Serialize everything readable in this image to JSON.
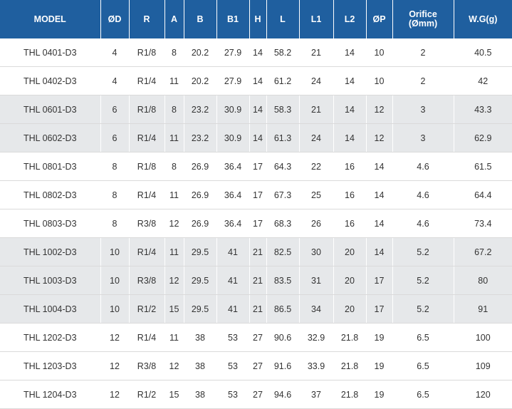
{
  "table": {
    "headers": [
      "MODEL",
      "ØD",
      "R",
      "A",
      "B",
      "B1",
      "H",
      "L",
      "L1",
      "L2",
      "ØP",
      "Orifice\n(Ømm)",
      "W.G(g)"
    ],
    "rows": [
      [
        "THL 0401-D3",
        "4",
        "R1/8",
        "8",
        "20.2",
        "27.9",
        "14",
        "58.2",
        "21",
        "14",
        "10",
        "2",
        "40.5"
      ],
      [
        "THL 0402-D3",
        "4",
        "R1/4",
        "11",
        "20.2",
        "27.9",
        "14",
        "61.2",
        "24",
        "14",
        "10",
        "2",
        "42"
      ],
      [
        "THL 0601-D3",
        "6",
        "R1/8",
        "8",
        "23.2",
        "30.9",
        "14",
        "58.3",
        "21",
        "14",
        "12",
        "3",
        "43.3"
      ],
      [
        "THL 0602-D3",
        "6",
        "R1/4",
        "11",
        "23.2",
        "30.9",
        "14",
        "61.3",
        "24",
        "14",
        "12",
        "3",
        "62.9"
      ],
      [
        "THL 0801-D3",
        "8",
        "R1/8",
        "8",
        "26.9",
        "36.4",
        "17",
        "64.3",
        "22",
        "16",
        "14",
        "4.6",
        "61.5"
      ],
      [
        "THL 0802-D3",
        "8",
        "R1/4",
        "11",
        "26.9",
        "36.4",
        "17",
        "67.3",
        "25",
        "16",
        "14",
        "4.6",
        "64.4"
      ],
      [
        "THL 0803-D3",
        "8",
        "R3/8",
        "12",
        "26.9",
        "36.4",
        "17",
        "68.3",
        "26",
        "16",
        "14",
        "4.6",
        "73.4"
      ],
      [
        "THL 1002-D3",
        "10",
        "R1/4",
        "11",
        "29.5",
        "41",
        "21",
        "82.5",
        "30",
        "20",
        "14",
        "5.2",
        "67.2"
      ],
      [
        "THL 1003-D3",
        "10",
        "R3/8",
        "12",
        "29.5",
        "41",
        "21",
        "83.5",
        "31",
        "20",
        "17",
        "5.2",
        "80"
      ],
      [
        "THL 1004-D3",
        "10",
        "R1/2",
        "15",
        "29.5",
        "41",
        "21",
        "86.5",
        "34",
        "20",
        "17",
        "5.2",
        "91"
      ],
      [
        "THL 1202-D3",
        "12",
        "R1/4",
        "11",
        "38",
        "53",
        "27",
        "90.6",
        "32.9",
        "21.8",
        "19",
        "6.5",
        "100"
      ],
      [
        "THL 1203-D3",
        "12",
        "R3/8",
        "12",
        "38",
        "53",
        "27",
        "91.6",
        "33.9",
        "21.8",
        "19",
        "6.5",
        "109"
      ],
      [
        "THL 1204-D3",
        "12",
        "R1/2",
        "15",
        "38",
        "53",
        "27",
        "94.6",
        "37",
        "21.8",
        "19",
        "6.5",
        "120"
      ]
    ],
    "shaded_rows": [
      2,
      3,
      7,
      8,
      9
    ],
    "colors": {
      "header_bg": "#1f5f9f",
      "header_text": "#ffffff",
      "row_alt_bg": "#e6e8ea",
      "row_bg": "#ffffff",
      "text": "#333333"
    }
  }
}
